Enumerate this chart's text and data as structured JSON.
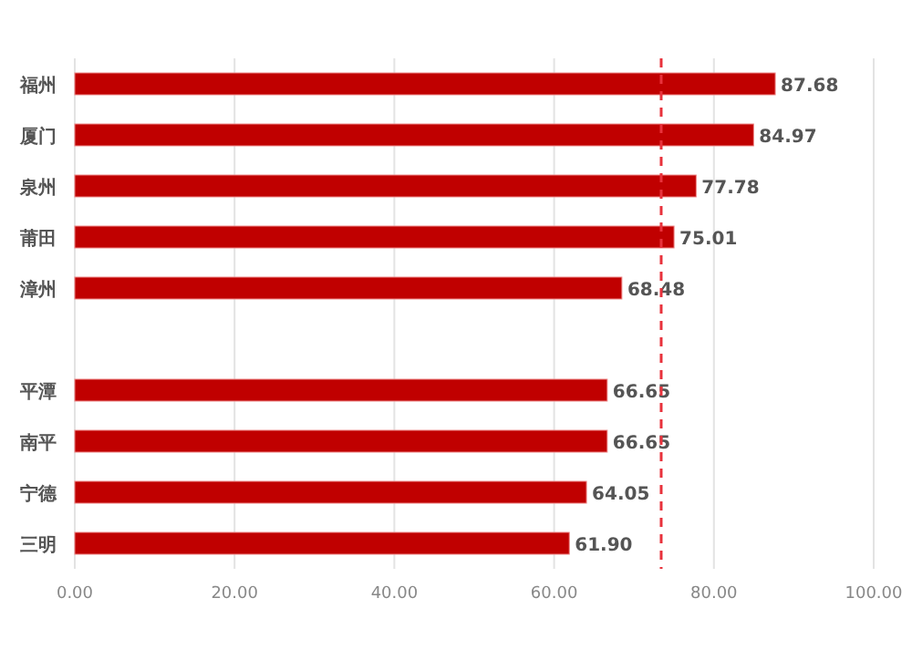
{
  "chart_data": {
    "type": "bar",
    "orientation": "horizontal",
    "categories": [
      "福州",
      "厦门",
      "泉州",
      "莆田",
      "漳州",
      null,
      "平潭",
      "南平",
      "宁德",
      "三明"
    ],
    "values": [
      87.68,
      84.97,
      77.78,
      75.01,
      68.48,
      null,
      66.65,
      66.65,
      64.05,
      61.9
    ],
    "value_labels": [
      "87.68",
      "84.97",
      "77.78",
      "75.01",
      "68.48",
      null,
      "66.65",
      "66.65",
      "64.05",
      "61.90"
    ],
    "color": "#c00000",
    "xlim": [
      0,
      100
    ],
    "xticks": [
      {
        "value": 0,
        "label": "0.00"
      },
      {
        "value": 20,
        "label": "20.00"
      },
      {
        "value": 40,
        "label": "40.00"
      },
      {
        "value": 60,
        "label": "60.00"
      },
      {
        "value": 80,
        "label": "80.00"
      },
      {
        "value": 100,
        "label": "100.00"
      }
    ],
    "grid": "x",
    "ref_lines": [
      {
        "axis": "x",
        "value": 73.4,
        "color": "#e8323c",
        "line_style": "dashed"
      }
    ]
  }
}
